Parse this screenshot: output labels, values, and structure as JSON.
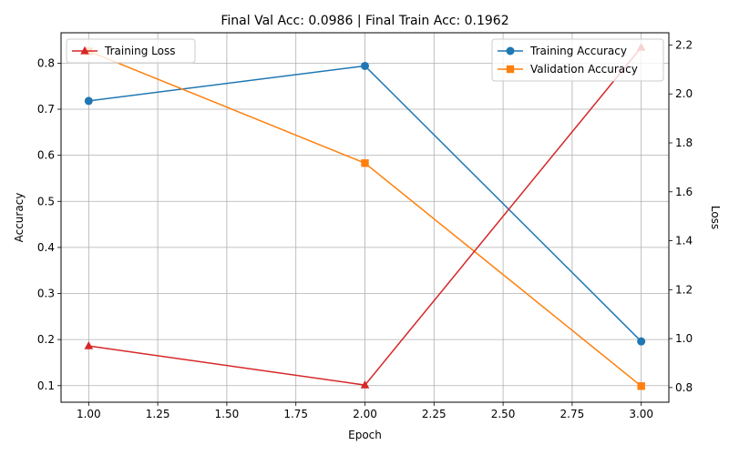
{
  "chart_data": {
    "type": "line",
    "title": "Final Val Acc: 0.0986 | Final Train Acc: 0.1962",
    "xlabel": "Epoch",
    "ylabel": "Accuracy",
    "y2label": "Loss",
    "x": [
      1.0,
      2.0,
      3.0
    ],
    "xlim": [
      0.9,
      3.1
    ],
    "ylim": [
      0.064,
      0.866
    ],
    "y2lim": [
      0.74,
      2.25
    ],
    "xticks": [
      "1.00",
      "1.25",
      "1.50",
      "1.75",
      "2.00",
      "2.25",
      "2.50",
      "2.75",
      "3.00"
    ],
    "yticks": [
      "0.1",
      "0.2",
      "0.3",
      "0.4",
      "0.5",
      "0.6",
      "0.7",
      "0.8"
    ],
    "y2ticks": [
      "0.8",
      "1.0",
      "1.2",
      "1.4",
      "1.6",
      "1.8",
      "2.0",
      "2.2"
    ],
    "grid": true,
    "series": [
      {
        "name": "Training Accuracy",
        "axis": "left",
        "values": [
          0.718,
          0.794,
          0.196
        ],
        "color": "#1f77b4",
        "marker": "circle"
      },
      {
        "name": "Validation Accuracy",
        "axis": "left",
        "values": [
          0.826,
          0.583,
          0.099
        ],
        "color": "#ff7f0e",
        "marker": "square"
      },
      {
        "name": "Training Loss",
        "axis": "right",
        "values": [
          0.97,
          0.81,
          2.19
        ],
        "color": "#d62728",
        "marker": "triangle"
      }
    ],
    "legends": [
      {
        "placement": "upper-left",
        "entries": [
          "Training Loss"
        ]
      },
      {
        "placement": "upper-right",
        "entries": [
          "Training Accuracy",
          "Validation Accuracy"
        ]
      }
    ]
  }
}
